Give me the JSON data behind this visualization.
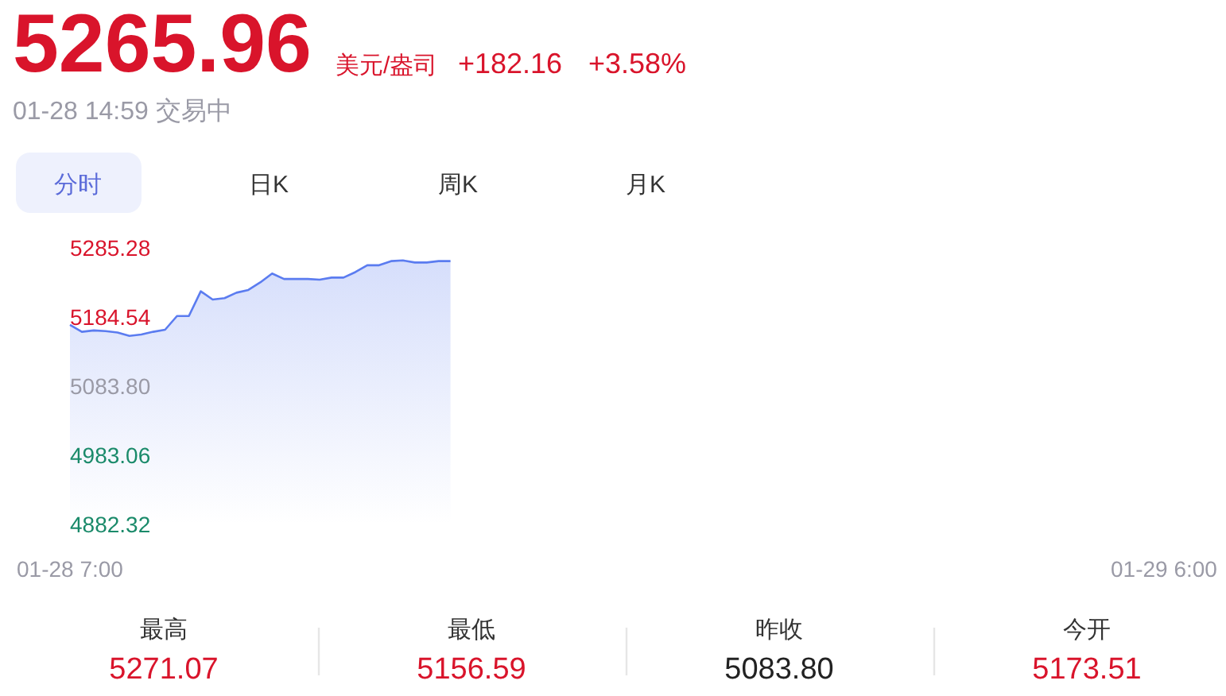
{
  "chart_data": [
    {
      "type": "area",
      "title": "5265.96",
      "annotations": [
        "美元/盎司",
        "+182.16",
        "+3.58%",
        "01-28 14:59 交易中",
        "分时",
        "日K",
        "周K",
        "月K"
      ],
      "categories": [
        "01-28 7:00",
        null,
        null,
        null,
        null,
        null,
        null,
        null,
        null,
        null,
        null,
        null,
        null,
        null,
        null,
        null,
        null,
        null,
        null,
        null,
        null,
        null,
        null,
        null,
        null,
        null,
        null,
        null,
        null,
        null,
        null,
        null,
        null,
        null,
        null,
        null,
        null,
        null,
        null,
        null,
        null,
        null,
        null,
        null,
        null,
        null,
        null,
        null,
        null,
        null,
        null,
        null,
        null,
        null,
        null,
        null,
        null,
        null,
        null,
        null,
        null,
        null,
        null,
        null,
        null,
        null,
        null,
        null,
        null,
        null,
        null,
        null,
        null,
        null,
        null,
        null,
        null,
        null,
        null,
        null,
        null,
        null,
        null,
        null,
        null,
        null,
        null,
        null,
        null,
        null,
        null,
        null,
        "01-29 6:00"
      ],
      "ylim": [
        4882.32,
        5285.28
      ],
      "yticks": [
        {
          "value": 4882.32,
          "label": "4882.32"
        },
        {
          "value": 4983.06,
          "label": "4983.06"
        },
        {
          "value": 5083.8,
          "label": "5083.80"
        },
        {
          "value": 5184.54,
          "label": "5184.54"
        },
        {
          "value": 5285.28,
          "label": "5285.28"
        }
      ],
      "series": [
        {
          "color": "#5b7cf0",
          "values": [
            5173,
            5163,
            5165,
            5164,
            5162,
            5157,
            5159,
            5163,
            5166,
            5186,
            5186,
            5222,
            5210,
            5212,
            5220,
            5224,
            5235,
            5248,
            5240,
            5240,
            5240,
            5239,
            5242,
            5242,
            5250,
            5260,
            5260,
            5266,
            5267,
            5264,
            5264,
            5266,
            5266,
            null,
            null,
            null,
            null,
            null,
            null,
            null,
            null,
            null,
            null,
            null,
            null,
            null,
            null,
            null,
            null,
            null,
            null,
            null,
            null,
            null,
            null,
            null,
            null,
            null,
            null,
            null,
            null,
            null,
            null,
            null,
            null,
            null,
            null,
            null,
            null,
            null,
            null,
            null,
            null,
            null,
            null,
            null,
            null,
            null,
            null,
            null,
            null,
            null,
            null,
            null,
            null,
            null,
            null,
            null,
            null,
            null,
            null,
            null,
            null
          ]
        }
      ]
    },
    {
      "type": "other",
      "categories": [
        "最高",
        "最低",
        "昨收",
        "今开"
      ],
      "value_labels": [
        "5271.07",
        "5156.59",
        "5083.80",
        "5173.51"
      ],
      "colors": [
        "#d9142b",
        "#d9142b",
        "#222222",
        "#d9142b"
      ]
    }
  ]
}
